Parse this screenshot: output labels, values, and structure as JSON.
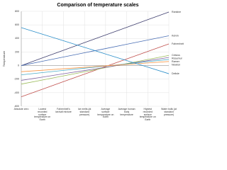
{
  "chart_data": {
    "type": "line",
    "title": "Comparison of temperature scales",
    "y_label": "Temperature",
    "categories": [
      "Absolute zero",
      "Lowest recorded surface temperature on Earth",
      "Fahrenheit's ice/salt mixture",
      "Ice melts (at standard pressure)",
      "Average surface temperature on Earth",
      "Average human body temperature",
      "Highest recorded surface temperature on Earth",
      "Water boils (at standard pressure)"
    ],
    "series": [
      {
        "name": "Rankine",
        "color": "#3f3f6f",
        "values": [
          0,
          113,
          226,
          339,
          451,
          564,
          677,
          790
        ]
      },
      {
        "name": "Kelvin",
        "color": "#4a6fb5",
        "values": [
          0,
          63,
          126,
          189,
          251,
          314,
          377,
          440
        ]
      },
      {
        "name": "Fahrenheit",
        "color": "#c0504d",
        "values": [
          -460,
          -349,
          -237,
          -126,
          -14,
          97,
          209,
          320
        ]
      },
      {
        "name": "Celsius",
        "color": "#9bbb59",
        "values": [
          -273,
          -213,
          -152,
          -92,
          -31,
          29,
          90,
          150
        ]
      },
      {
        "name": "Réaumur",
        "color": "#8064a2",
        "values": [
          -218,
          -170,
          -121,
          -73,
          -25,
          24,
          72,
          120
        ]
      },
      {
        "name": "Rømer",
        "color": "#4bacc6",
        "values": [
          -136,
          -104,
          -71,
          -39,
          -7,
          25,
          58,
          90
        ]
      },
      {
        "name": "Newton",
        "color": "#f79646",
        "values": [
          -90,
          -69,
          -47,
          -26,
          -4,
          17,
          39,
          60
        ]
      },
      {
        "name": "Delisle",
        "color": "#2c8fc9",
        "values": [
          560,
          463,
          366,
          269,
          171,
          74,
          -23,
          -120
        ]
      }
    ],
    "ylim": [
      -600,
      800
    ],
    "yticks": [
      -600,
      -400,
      -200,
      0,
      200,
      400,
      600,
      800
    ],
    "grid": true
  }
}
